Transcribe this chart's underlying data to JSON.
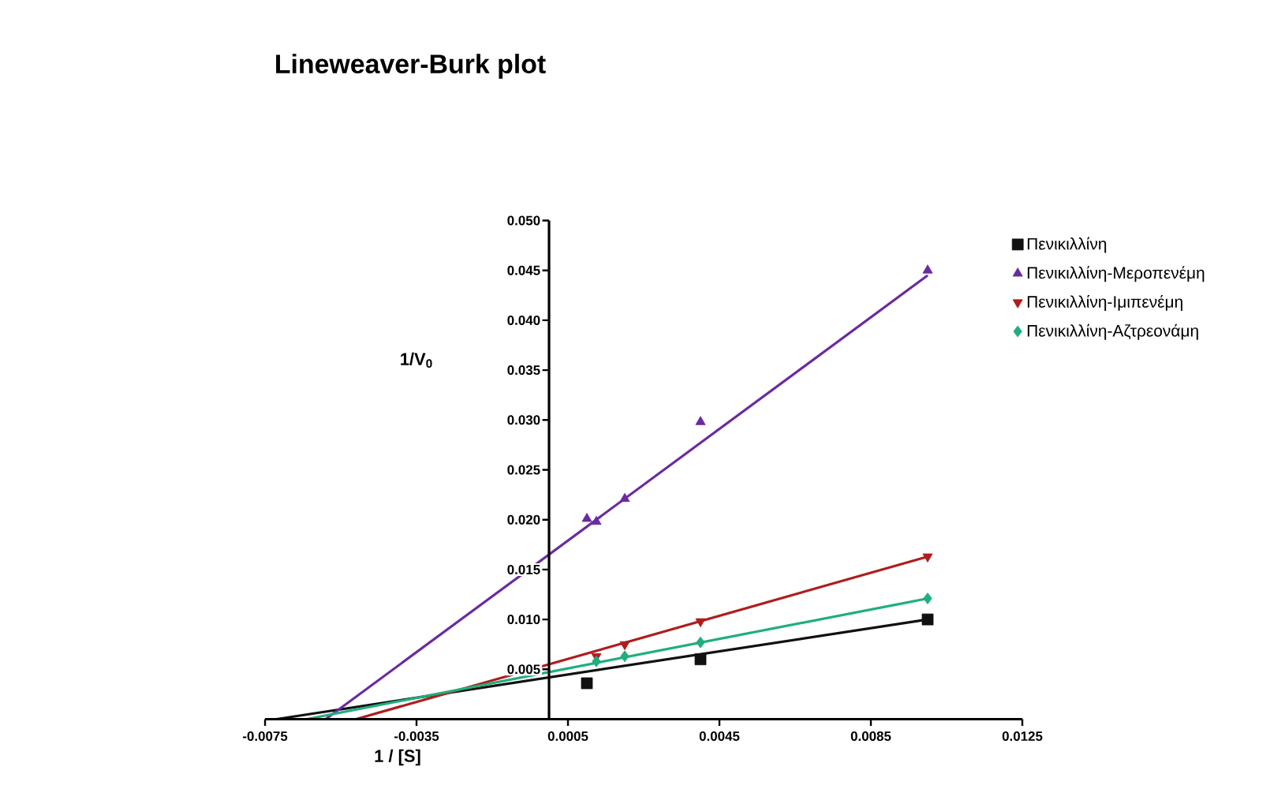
{
  "chart_data": {
    "type": "scatter",
    "title": "Lineweaver-Burk plot",
    "xlabel": "1 / [S]",
    "ylabel": "1/V$_{0}$",
    "xlim": [
      -0.0075,
      0.0125
    ],
    "ylim": [
      0,
      0.05
    ],
    "xticks": [
      -0.0075,
      -0.0035,
      0.0005,
      0.0045,
      0.0085,
      0.0125
    ],
    "yticks": [
      0.005,
      {
        "value": 0.01,
        "label": "0.010"
      },
      0.015,
      {
        "value": 0.02,
        "label": "0.020"
      },
      0.025,
      {
        "value": 0.03,
        "label": "0.030"
      },
      0.035,
      {
        "value": 0.04,
        "label": "0.040"
      },
      0.045,
      {
        "value": 0.05,
        "label": "0.050"
      }
    ],
    "legend": "right",
    "grid": false,
    "series": [
      {
        "name": "Πενικιλλίνη",
        "marker": "square",
        "color": "#111111",
        "x": [
          0.001,
          0.004,
          0.01
        ],
        "values": [
          0.0036,
          0.006,
          0.01
        ]
      },
      {
        "name": "Πενικιλλίνη-Μεροπενέμη",
        "marker": "triangle",
        "color": "#6a2aa0",
        "x": [
          0.001,
          0.00125,
          0.002,
          0.004,
          0.01
        ],
        "values": [
          0.0201,
          0.0198,
          0.0221,
          0.0298,
          0.045
        ]
      },
      {
        "name": "Πενικιλλίνη-Ιμιπενέμη",
        "marker": "triangle down",
        "color": "#b01c1c",
        "x": [
          0.00125,
          0.002,
          0.004,
          0.01
        ],
        "values": [
          0.0063,
          0.0075,
          0.0098,
          0.0163
        ]
      },
      {
        "name": "Πενικιλλίνη-Αζτρεονάμη",
        "marker": "diamond",
        "color": "#1fae7d",
        "x": [
          0.00125,
          0.002,
          0.004,
          0.01
        ],
        "values": [
          0.0058,
          0.0063,
          0.0077,
          0.0121
        ]
      },
      {
        "type": "line",
        "marker": "none",
        "color": "#111111",
        "x": [
          -0.0072,
          0.01
        ],
        "values": [
          0,
          0.01
        ]
      },
      {
        "type": "line",
        "marker": "none",
        "color": "#6a2aa0",
        "x": [
          -0.0059,
          0.01
        ],
        "values": [
          0,
          0.0445
        ]
      },
      {
        "type": "line",
        "marker": "none",
        "color": "#b01c1c",
        "x": [
          -0.0051,
          0.01
        ],
        "values": [
          0,
          0.0163
        ]
      },
      {
        "type": "line",
        "marker": "none",
        "color": "#1fae7d",
        "x": [
          -0.0064,
          0.01
        ],
        "values": [
          0,
          0.0121
        ]
      }
    ]
  }
}
